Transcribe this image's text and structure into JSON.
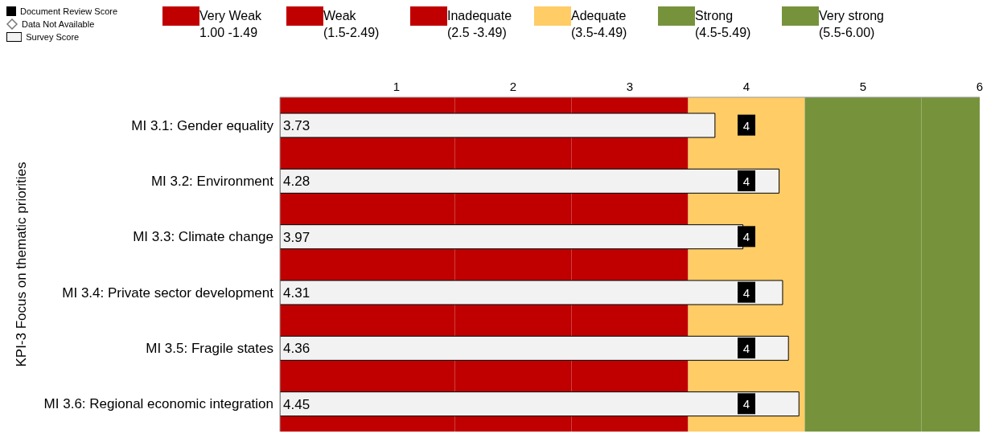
{
  "chart_data": {
    "type": "bar",
    "orientation": "horizontal",
    "ylabel": "KPI-3 Focus on thematic priorities",
    "categories": [
      "MI 3.1: Gender equality",
      "MI 3.2: Environment",
      "MI 3.3: Climate change",
      "MI 3.4: Private sector development",
      "MI 3.5: Fragile states",
      "MI 3.6: Regional economic integration"
    ],
    "series": [
      {
        "name": "Document Review Score",
        "type": "scatter",
        "marker": "square",
        "color": "#000000",
        "values": [
          4,
          4,
          4,
          4,
          4,
          4
        ]
      },
      {
        "name": "Data Not Available",
        "type": "scatter",
        "marker": "diamond",
        "color": "#ffffff",
        "values": [
          null,
          null,
          null,
          null,
          null,
          null
        ]
      },
      {
        "name": "Survey Score",
        "color": "#f2f2f2",
        "values": [
          3.73,
          4.28,
          3.97,
          4.31,
          4.36,
          4.45
        ]
      }
    ],
    "bands": [
      {
        "axis": "x",
        "from": 0,
        "to": 1.5,
        "label": "Very Weak\n1.00 -1.49",
        "color": "#c00000"
      },
      {
        "axis": "x",
        "from": 1.5,
        "to": 2.5,
        "label": "Weak\n(1.5-2.49)",
        "color": "#c00000"
      },
      {
        "axis": "x",
        "from": 2.5,
        "to": 3.5,
        "label": "Inadequate\n(2.5 -3.49)",
        "color": "#c00000"
      },
      {
        "axis": "x",
        "from": 3.5,
        "to": 4.5,
        "label": "Adequate\n(3.5-4.49)",
        "color": "#ffcc66"
      },
      {
        "axis": "x",
        "from": 4.5,
        "to": 5.5,
        "label": "Strong\n(4.5-5.49)",
        "color": "#76933c"
      },
      {
        "axis": "x",
        "from": 5.5,
        "to": 6,
        "label": "Very strong\n(5.5-6.00)",
        "color": "#76933c"
      }
    ],
    "xlim": [
      0,
      6
    ],
    "xticks": [
      1,
      2,
      3,
      4,
      5,
      6
    ],
    "data_labels": true,
    "legend": "top left"
  }
}
